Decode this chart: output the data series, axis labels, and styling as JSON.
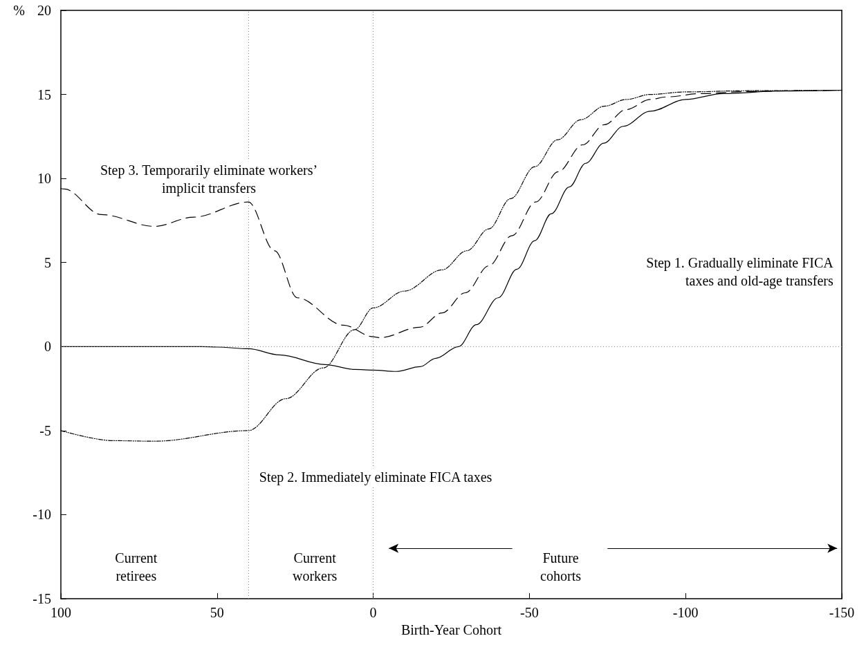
{
  "chart_data": {
    "type": "line",
    "xlabel": "Birth-Year Cohort",
    "ylabel": "%",
    "xlim": [
      100,
      -150
    ],
    "xticks": [
      100,
      50,
      0,
      -50,
      -100,
      -150
    ],
    "ylim": [
      -15,
      20
    ],
    "yticks": [
      -15,
      -10,
      -5,
      0,
      5,
      10,
      15,
      20
    ],
    "grid": false,
    "marker": "none",
    "series": [
      {
        "color": "#000000",
        "line_style": "solid",
        "x": [
          100,
          80,
          60,
          55,
          50,
          40,
          30,
          15.4,
          5.9,
          0,
          -7.4,
          -15,
          -20,
          -27.3,
          -33,
          -40,
          -46,
          -51.7,
          -57,
          -62.8,
          -68,
          -73.8,
          -80,
          -88.7,
          -100,
          -112,
          -130,
          -150
        ],
        "values": [
          0,
          0,
          0,
          0,
          -0.03,
          -0.13,
          -0.5,
          -1.07,
          -1.36,
          -1.4,
          -1.48,
          -1.2,
          -0.7,
          0,
          1.3,
          2.9,
          4.6,
          6.3,
          7.9,
          9.5,
          10.9,
          12.1,
          13.1,
          14.0,
          14.7,
          15.05,
          15.2,
          15.25
        ]
      },
      {
        "color": "#000000",
        "line_style": "dashed",
        "x": [
          100,
          98.9,
          87,
          70,
          57.5,
          40,
          31.6,
          24.3,
          9.5,
          0,
          -2.2,
          -14.9,
          -22,
          -29.5,
          -37,
          -44.4,
          -52,
          -59.2,
          -67,
          -74,
          -81,
          -88.7,
          -93.8,
          -105,
          -119.7,
          -135,
          -150
        ],
        "values": [
          9.4,
          9.37,
          7.85,
          7.15,
          7.7,
          8.6,
          5.7,
          2.9,
          1.27,
          0.58,
          0.53,
          1.15,
          2.0,
          3.2,
          4.8,
          6.6,
          8.6,
          10.4,
          12.0,
          13.2,
          14.1,
          14.7,
          14.85,
          15.05,
          15.17,
          15.22,
          15.25
        ]
      },
      {
        "color": "#000000",
        "line_style": "dotted",
        "x": [
          100,
          83,
          70,
          40,
          28,
          16,
          6,
          0,
          -10,
          -22,
          -30,
          -37,
          -44,
          -51.7,
          -59,
          -66.5,
          -74,
          -81,
          -88.7,
          -100,
          -120,
          -150
        ],
        "values": [
          -5.0,
          -5.6,
          -5.63,
          -5.0,
          -3.1,
          -1.27,
          1.0,
          2.3,
          3.3,
          4.56,
          5.7,
          7.0,
          8.8,
          10.7,
          12.3,
          13.5,
          14.3,
          14.7,
          15.0,
          15.15,
          15.22,
          15.25
        ]
      }
    ],
    "ref_lines": [
      {
        "axis": "x",
        "value": 40,
        "line_style": "dotted",
        "color": "#808080"
      },
      {
        "axis": "x",
        "value": 0,
        "line_style": "dotted",
        "color": "#808080"
      },
      {
        "axis": "y",
        "value": 0,
        "line_style": "dotted",
        "color": "#808080"
      }
    ],
    "annotations": [
      "Step 3. Temporarily eliminate workers’\nimplicit transfers",
      "Step 1. Gradually eliminate FICA\ntaxes and old-age transfers",
      "Step 2. Immediately eliminate FICA taxes",
      "Current\nretirees",
      "Current\nworkers",
      "Future\ncohorts"
    ]
  }
}
